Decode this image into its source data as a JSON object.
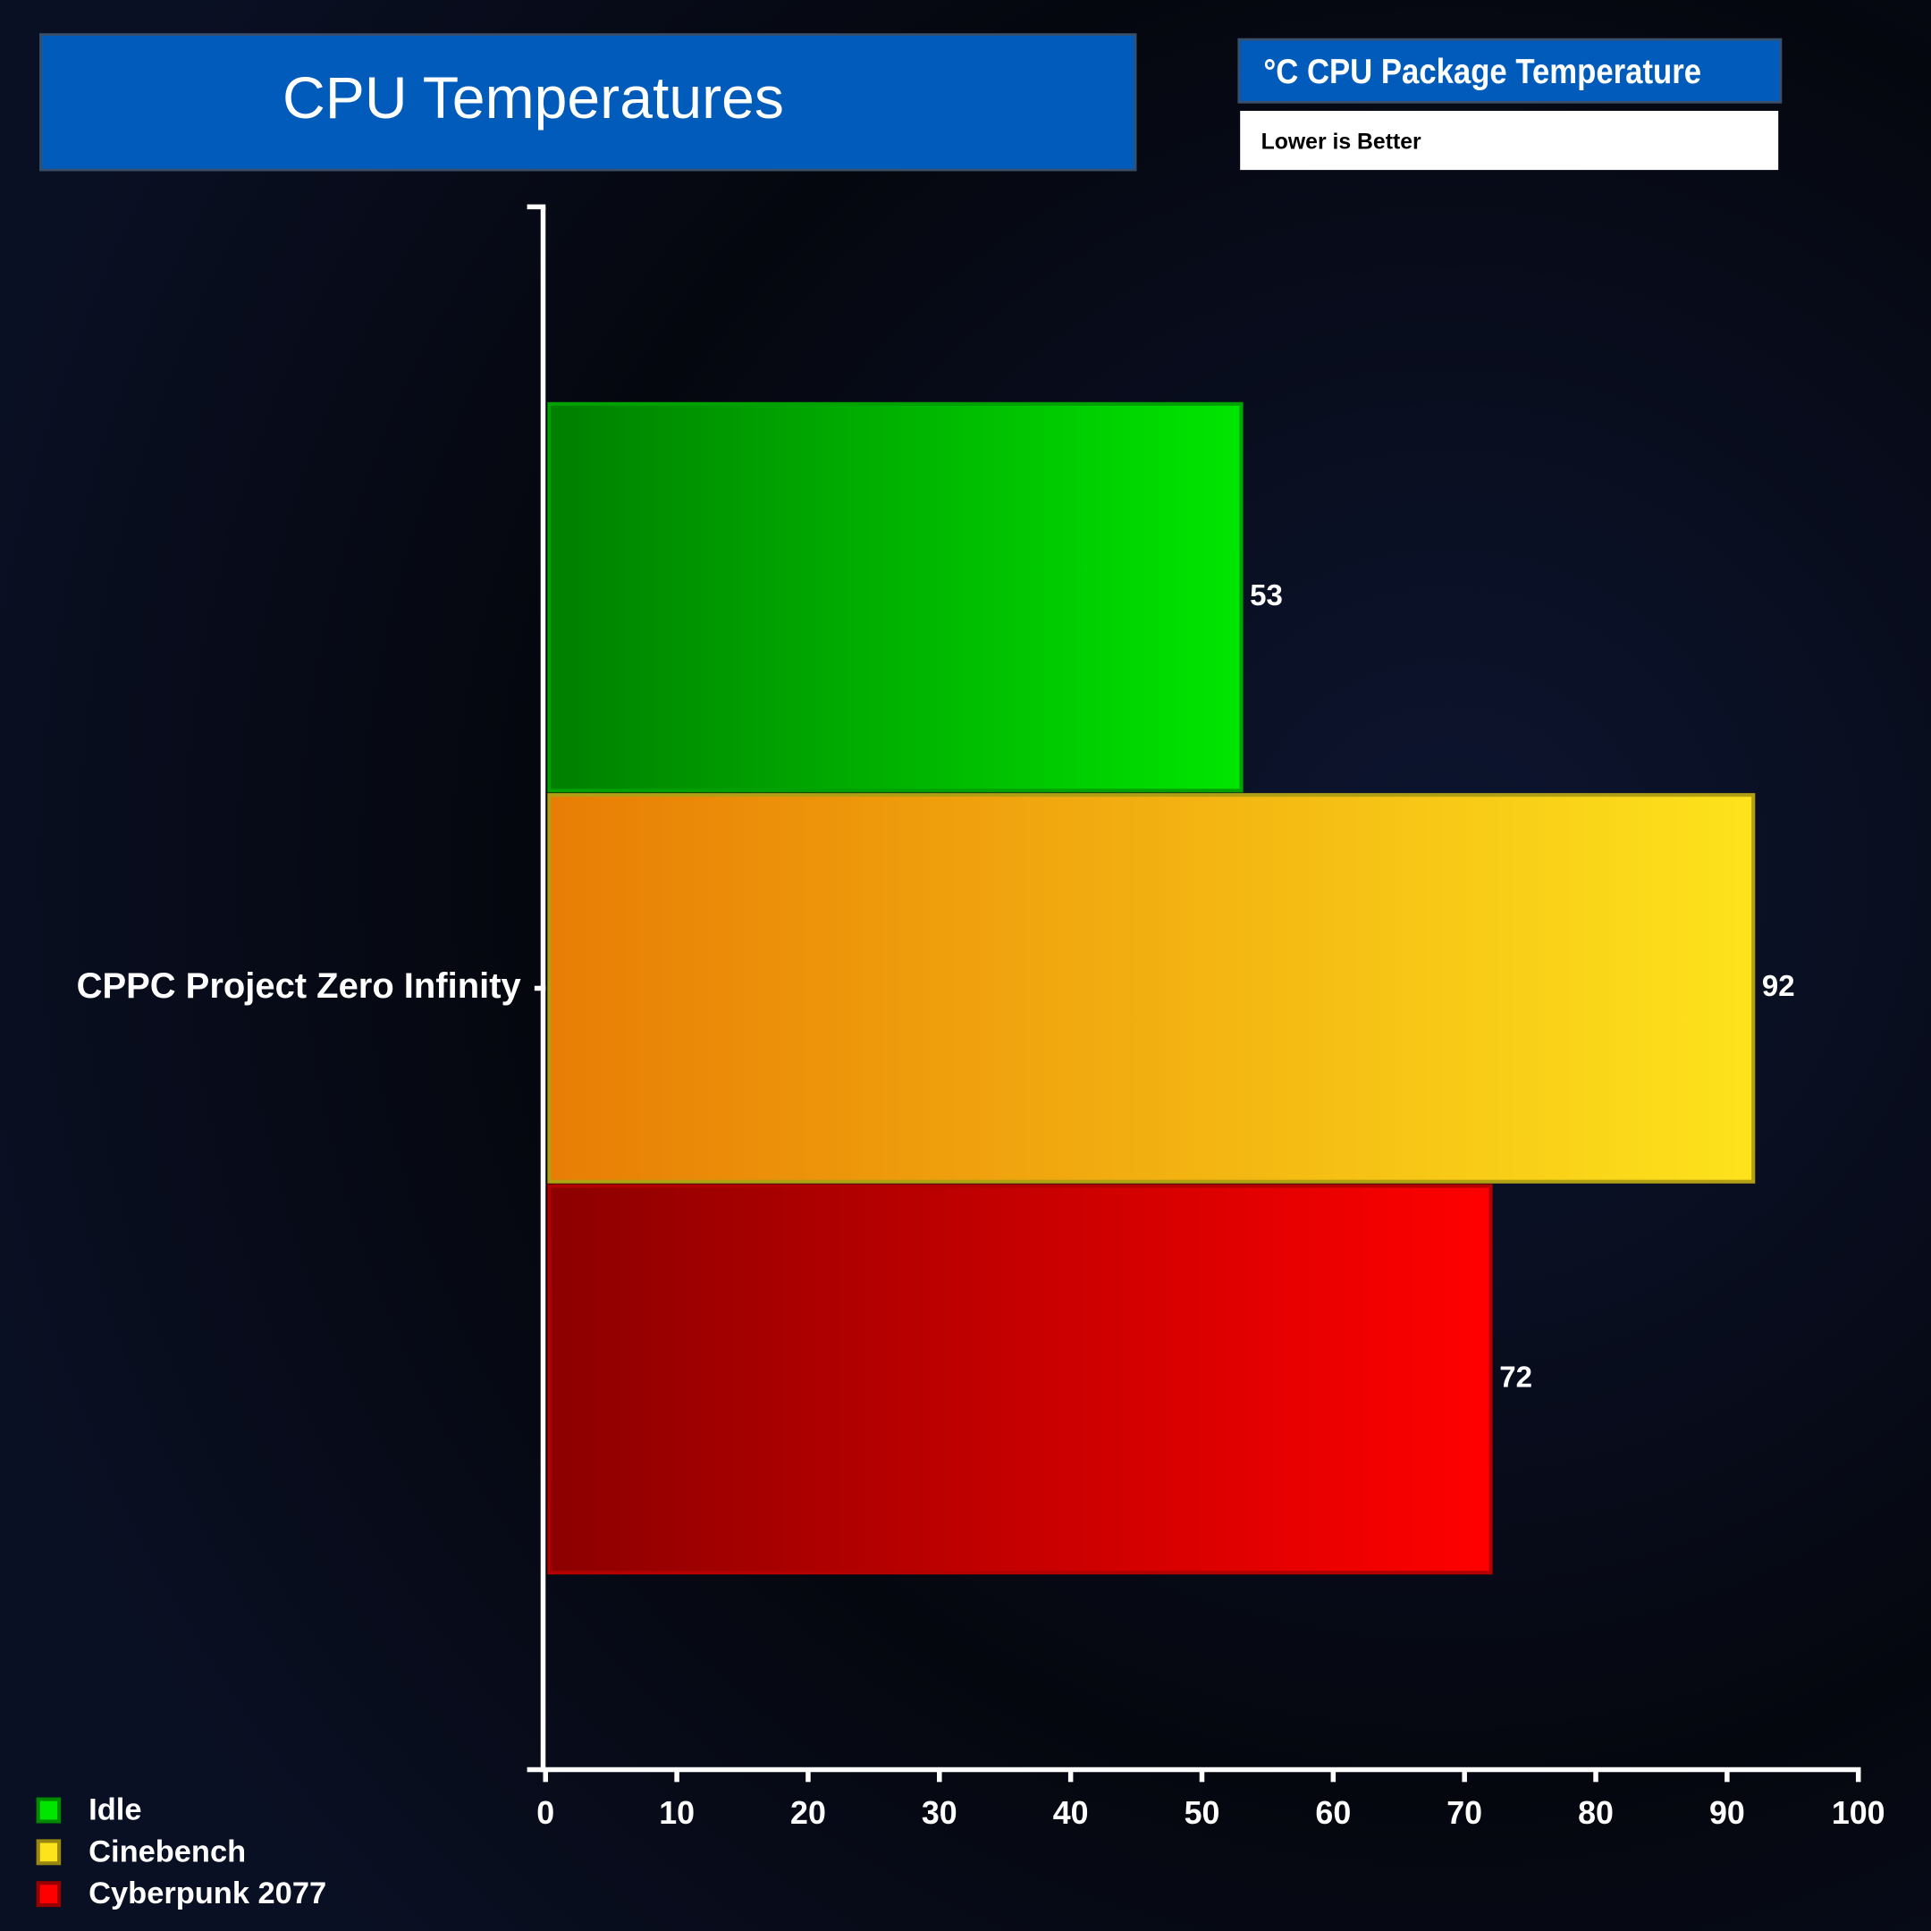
{
  "chart_data": {
    "type": "hbar",
    "title": "CPU Temperatures",
    "subtitle": "°C CPU Package Temperature",
    "note": "Lower is Better",
    "categories": [
      "CPPC Project Zero Infinity"
    ],
    "series": [
      {
        "name": "Idle",
        "color": "#00e600",
        "values": [
          53
        ]
      },
      {
        "name": "Cinebench",
        "color": "#fde31c",
        "values": [
          92
        ]
      },
      {
        "name": "Cyberpunk 2077",
        "color": "#ff0000",
        "values": [
          72
        ]
      }
    ],
    "xlim": [
      0,
      100
    ],
    "xticks": [
      0,
      10,
      20,
      30,
      40,
      50,
      60,
      70,
      80,
      90,
      100
    ],
    "legend": "bottom-left"
  }
}
